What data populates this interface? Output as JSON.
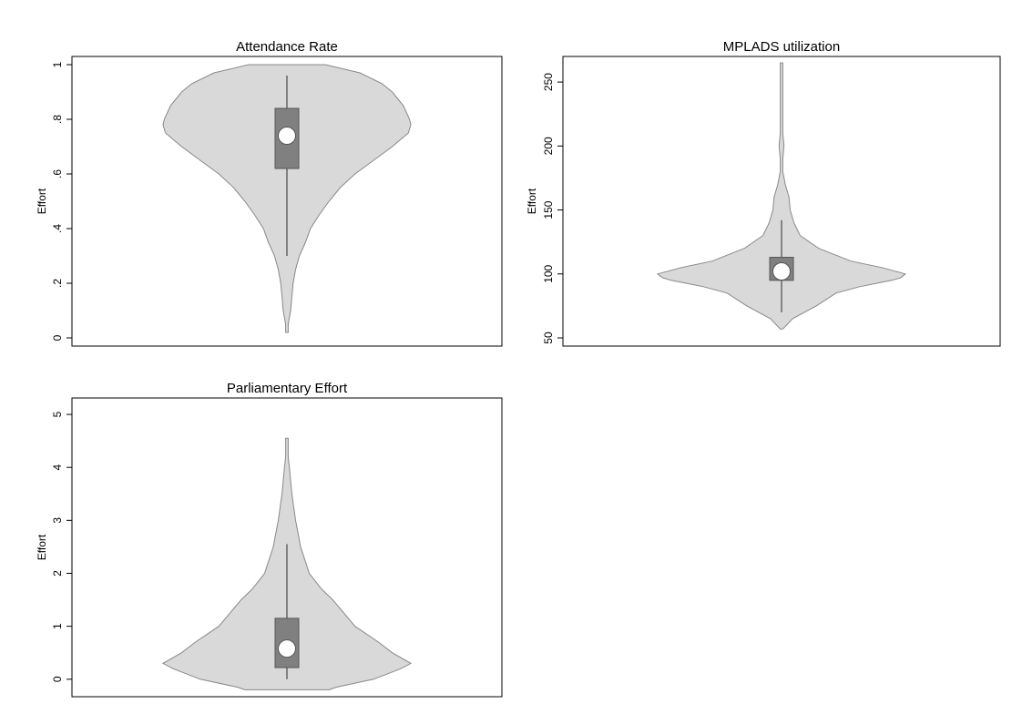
{
  "chart_data": [
    {
      "type": "violin",
      "title": "Attendance Rate",
      "ylabel": "Effort",
      "ylim": [
        -0.03,
        1.03
      ],
      "yticks": [
        0,
        {
          "value": 0.2,
          "label": ".2"
        },
        {
          "value": 0.4,
          "label": ".4"
        },
        {
          "value": 0.6,
          "label": ".6"
        },
        {
          "value": 0.8,
          "label": ".8"
        },
        1
      ],
      "color": "#d9d9d9",
      "box_color": "#808080",
      "violin": {
        "y": [
          1.0,
          0.97,
          0.93,
          0.9,
          0.85,
          0.8,
          0.78,
          0.75,
          0.7,
          0.65,
          0.6,
          0.55,
          0.5,
          0.45,
          0.4,
          0.35,
          0.3,
          0.25,
          0.2,
          0.15,
          0.1,
          0.05,
          0.02
        ],
        "density": [
          0.31,
          0.59,
          0.77,
          0.85,
          0.94,
          0.99,
          1,
          0.98,
          0.85,
          0.7,
          0.55,
          0.43,
          0.34,
          0.26,
          0.19,
          0.15,
          0.1,
          0.07,
          0.05,
          0.04,
          0.03,
          0.01,
          0.01
        ]
      },
      "box": {
        "q1": 0.62,
        "q3": 0.84,
        "median": 0.74,
        "whisker_low": 0.3,
        "whisker_high": 0.96
      }
    },
    {
      "type": "violin",
      "title": "MPLADS utilization",
      "ylabel": "Effort",
      "ylim": [
        43.6,
        270
      ],
      "yticks": [
        50,
        100,
        150,
        200,
        250
      ],
      "color": "#d9d9d9",
      "box_color": "#808080",
      "violin": {
        "y": [
          265,
          250,
          230,
          210,
          200,
          190,
          180,
          170,
          160,
          150,
          140,
          130,
          120,
          110,
          105,
          100,
          97,
          95,
          90,
          85,
          75,
          65,
          57
        ],
        "density": [
          0.01,
          0.01,
          0.01,
          0.01,
          0.02,
          0.01,
          0.01,
          0.03,
          0.06,
          0.07,
          0.1,
          0.15,
          0.3,
          0.56,
          0.81,
          1,
          0.96,
          0.89,
          0.63,
          0.44,
          0.28,
          0.09,
          0.01
        ]
      },
      "box": {
        "q1": 95,
        "q3": 113,
        "median": 102,
        "whisker_low": 70,
        "whisker_high": 142
      }
    },
    {
      "type": "violin",
      "title": "Parliamentary Effort",
      "ylabel": "Effort",
      "ylim": [
        -0.33,
        5.31
      ],
      "yticks": [
        0,
        1,
        2,
        3,
        4,
        5
      ],
      "color": "#d9d9d9",
      "box_color": "#808080",
      "violin": {
        "y": [
          4.55,
          4.2,
          4,
          3.5,
          3,
          2.5,
          2,
          1.7,
          1.5,
          1,
          0.7,
          0.5,
          0.3,
          0.2,
          0,
          -0.15,
          -0.2
        ],
        "density": [
          0.01,
          0.01,
          0.02,
          0.04,
          0.07,
          0.11,
          0.18,
          0.28,
          0.37,
          0.55,
          0.74,
          0.85,
          1,
          0.92,
          0.7,
          0.4,
          0.34
        ]
      },
      "box": {
        "q1": 0.22,
        "q3": 1.15,
        "median": 0.58,
        "whisker_low": 0,
        "whisker_high": 2.55
      }
    }
  ]
}
